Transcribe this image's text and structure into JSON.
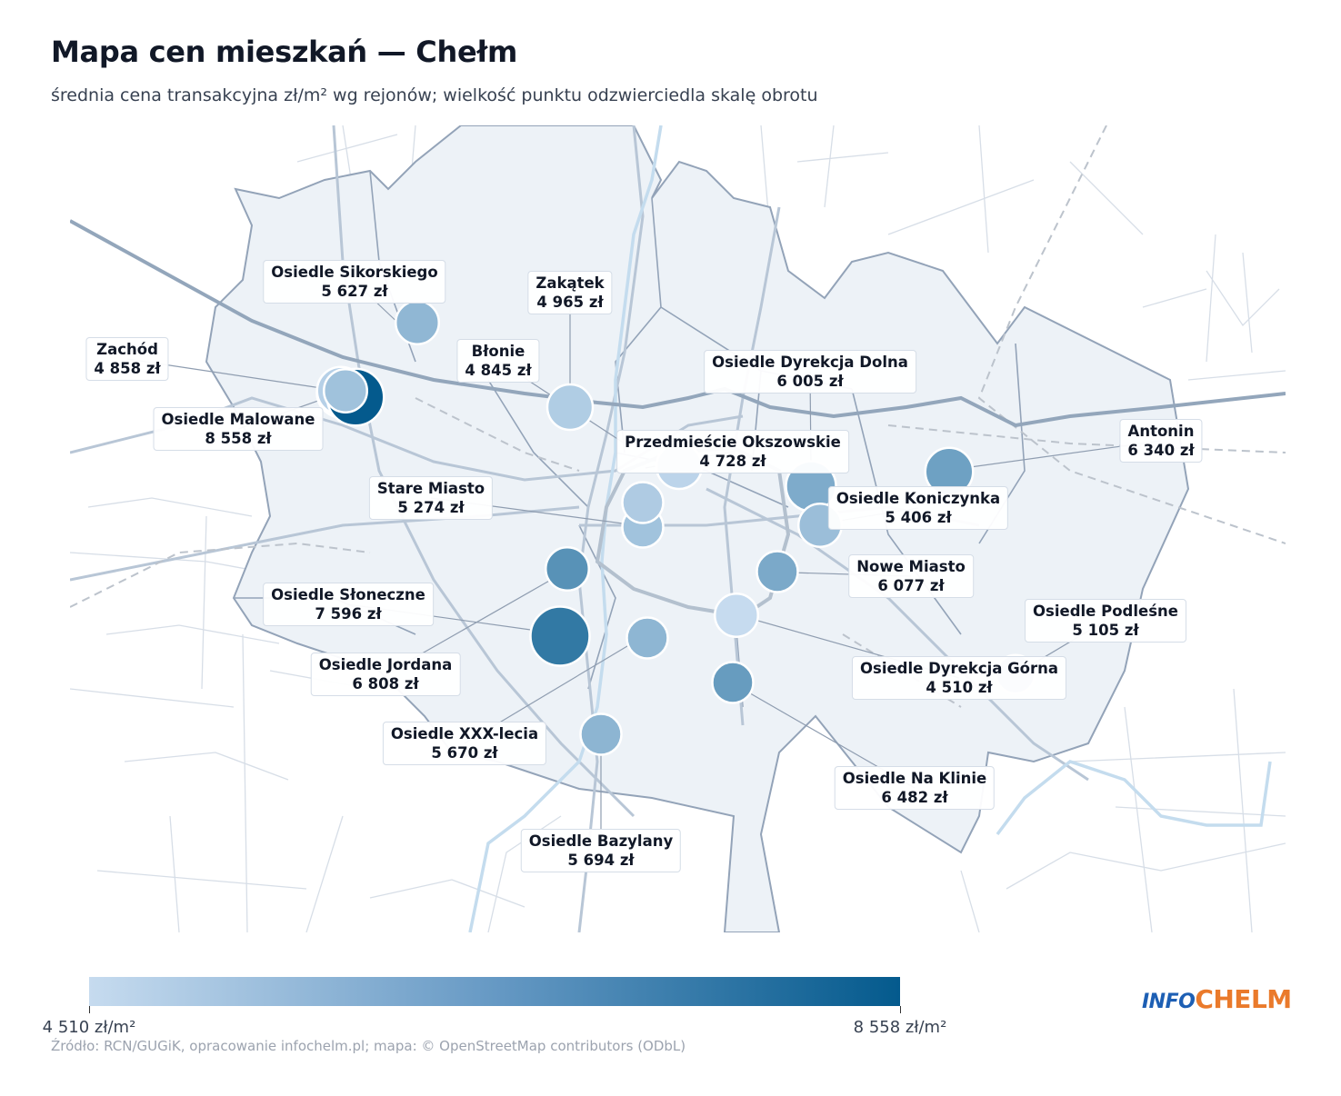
{
  "title": "Mapa cen mieszkań — Chełm",
  "subtitle": "średnia cena transakcyjna zł/m² wg rejonów; wielkość punktu odzwierciedla skalę obrotu",
  "colors": {
    "low": "#c6dbef",
    "high": "#045a8d"
  },
  "legend": {
    "min_label": "4 510 zł/m²",
    "max_label": "8 558 zł/m²",
    "min": 4510,
    "max": 8558
  },
  "source": "Źródło: RCN/GUGiK, opracowanie infochelm.pl; mapa: © OpenStreetMap contributors (ODbL)",
  "logo": {
    "part1": "INFO",
    "part2": "CHELM"
  },
  "districts": [
    {
      "name": "Osiedle Sikorskiego",
      "price_label": "5 627 zł",
      "price": 5627,
      "turnover": 0.55
    },
    {
      "name": "Zakątek",
      "price_label": "4 965 zł",
      "price": 4965,
      "turnover": 0.6
    },
    {
      "name": "Zachód",
      "price_label": "4 858 zł",
      "price": 4858,
      "turnover": 0.7
    },
    {
      "name": "Błonie",
      "price_label": "4 845 zł",
      "price": 4845,
      "turnover": 0.65
    },
    {
      "name": "Osiedle Malowane",
      "price_label": "8 558 zł",
      "price": 8558,
      "turnover": 0.85
    },
    {
      "name": "Osiedle Dyrekcja Dolna",
      "price_label": "6 005 zł",
      "price": 6005,
      "turnover": 0.7
    },
    {
      "name": "Przedmieście Okszowskie",
      "price_label": "4 728 zł",
      "price": 4728,
      "turnover": 0.6
    },
    {
      "name": "Antonin",
      "price_label": "6 340 zł",
      "price": 6340,
      "turnover": 0.65
    },
    {
      "name": "Stare Miasto",
      "price_label": "5 274 zł",
      "price": 5274,
      "turnover": 0.5
    },
    {
      "name": "Osiedle Koniczynka",
      "price_label": "5 406 zł",
      "price": 5406,
      "turnover": 0.55
    },
    {
      "name": "Nowe Miasto",
      "price_label": "6 077 zł",
      "price": 6077,
      "turnover": 0.5
    },
    {
      "name": "Osiedle Podleśne",
      "price_label": "5 105 zł",
      "price": 5105,
      "turnover": 0.45
    },
    {
      "name": "Osiedle Słoneczne",
      "price_label": "7 596 zł",
      "price": 7596,
      "turnover": 0.9
    },
    {
      "name": "Osiedle Jordana",
      "price_label": "6 808 zł",
      "price": 6808,
      "turnover": 0.55
    },
    {
      "name": "Osiedle Dyrekcja Górna",
      "price_label": "4 510 zł",
      "price": 4510,
      "turnover": 0.55
    },
    {
      "name": "Osiedle XXX-lecia",
      "price_label": "5 670 zł",
      "price": 5670,
      "turnover": 0.5
    },
    {
      "name": "Osiedle Na Klinie",
      "price_label": "6 482 zł",
      "price": 6482,
      "turnover": 0.5
    },
    {
      "name": "Osiedle Bazylany",
      "price_label": "5 694 zł",
      "price": 5694,
      "turnover": 0.5
    },
    {
      "name": "",
      "price_label": "",
      "price": 5000,
      "turnover": 0.5
    },
    {
      "name": "",
      "price_label": "",
      "price": 5300,
      "turnover": 0.55
    }
  ]
}
